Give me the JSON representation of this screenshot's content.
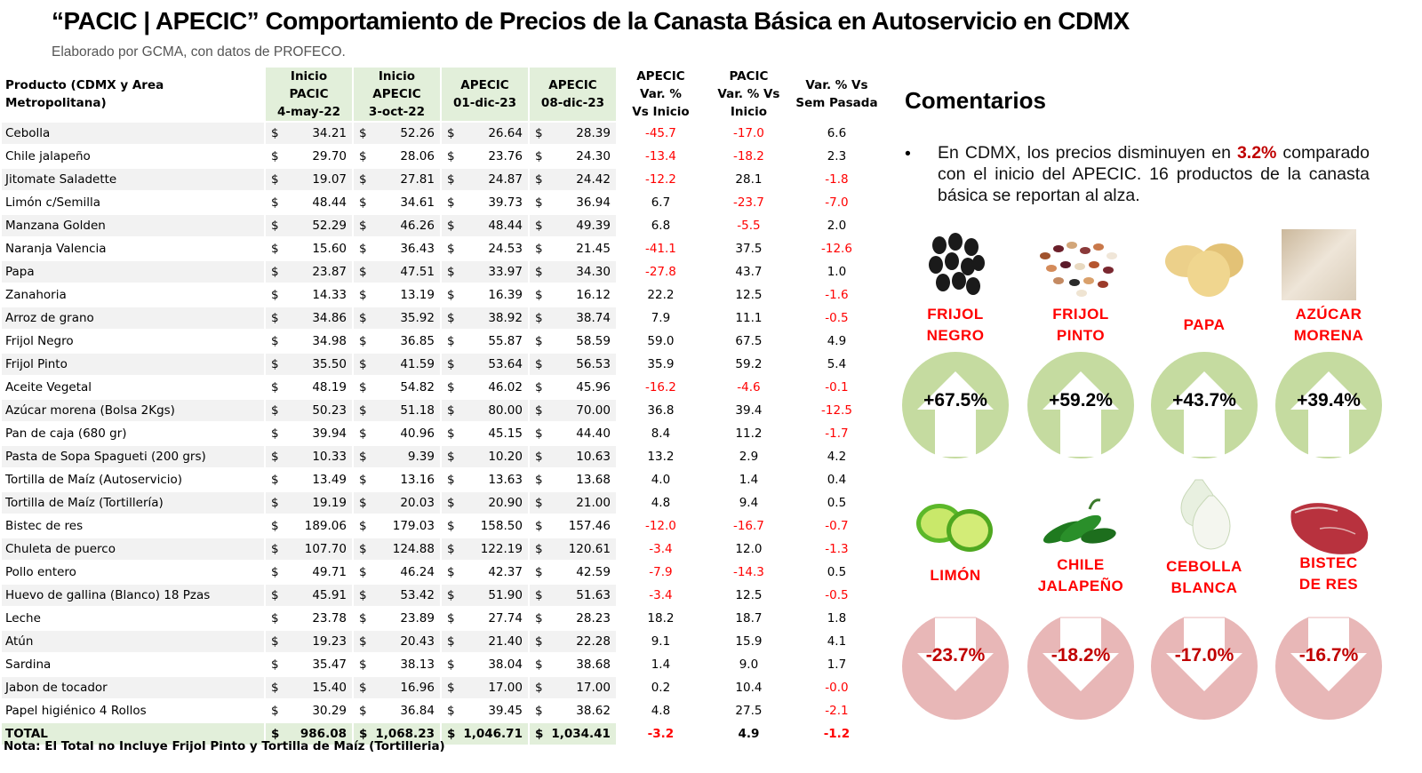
{
  "header": {
    "title": "“PACIC | APECIC” Comportamiento de Precios de la Canasta Básica en Autoservicio en CDMX",
    "subtitle": "Elaborado por GCMA, con datos de PROFECO."
  },
  "table": {
    "columns": {
      "product": "Producto (CDMX y Area Metropolitana)",
      "inicio_pacic": [
        "Inicio",
        "PACIC",
        "4-may-22"
      ],
      "inicio_apecic": [
        "Inicio",
        "APECIC",
        "3-oct-22"
      ],
      "apecic_01dic": [
        "APECIC",
        "01-dic-23"
      ],
      "apecic_08dic": [
        "APECIC",
        "08-dic-23"
      ],
      "apecic_var": [
        "APECIC",
        "Var. %",
        "Vs  Inicio"
      ],
      "pacic_var": [
        "PACIC",
        "Var. % Vs",
        "Inicio"
      ],
      "sem_var": [
        "Var. % Vs",
        "Sem Pasada"
      ]
    },
    "currency": "$",
    "rows": [
      {
        "product": "Cebolla",
        "inicio_pacic": "34.21",
        "inicio_apecic": "52.26",
        "d01": "26.64",
        "d08": "28.39",
        "apecic_var": "-45.7",
        "pacic_var": "-17.0",
        "sem_var": "6.6"
      },
      {
        "product": "Chile jalapeño",
        "inicio_pacic": "29.70",
        "inicio_apecic": "28.06",
        "d01": "23.76",
        "d08": "24.30",
        "apecic_var": "-13.4",
        "pacic_var": "-18.2",
        "sem_var": "2.3"
      },
      {
        "product": "Jitomate Saladette",
        "inicio_pacic": "19.07",
        "inicio_apecic": "27.81",
        "d01": "24.87",
        "d08": "24.42",
        "apecic_var": "-12.2",
        "pacic_var": "28.1",
        "sem_var": "-1.8"
      },
      {
        "product": "Limón c/Semilla",
        "inicio_pacic": "48.44",
        "inicio_apecic": "34.61",
        "d01": "39.73",
        "d08": "36.94",
        "apecic_var": "6.7",
        "pacic_var": "-23.7",
        "sem_var": "-7.0"
      },
      {
        "product": "Manzana Golden",
        "inicio_pacic": "52.29",
        "inicio_apecic": "46.26",
        "d01": "48.44",
        "d08": "49.39",
        "apecic_var": "6.8",
        "pacic_var": "-5.5",
        "sem_var": "2.0"
      },
      {
        "product": "Naranja Valencia",
        "inicio_pacic": "15.60",
        "inicio_apecic": "36.43",
        "d01": "24.53",
        "d08": "21.45",
        "apecic_var": "-41.1",
        "pacic_var": "37.5",
        "sem_var": "-12.6"
      },
      {
        "product": "Papa",
        "inicio_pacic": "23.87",
        "inicio_apecic": "47.51",
        "d01": "33.97",
        "d08": "34.30",
        "apecic_var": "-27.8",
        "pacic_var": "43.7",
        "sem_var": "1.0"
      },
      {
        "product": "Zanahoria",
        "inicio_pacic": "14.33",
        "inicio_apecic": "13.19",
        "d01": "16.39",
        "d08": "16.12",
        "apecic_var": "22.2",
        "pacic_var": "12.5",
        "sem_var": "-1.6"
      },
      {
        "product": "Arroz de grano",
        "inicio_pacic": "34.86",
        "inicio_apecic": "35.92",
        "d01": "38.92",
        "d08": "38.74",
        "apecic_var": "7.9",
        "pacic_var": "11.1",
        "sem_var": "-0.5"
      },
      {
        "product": "Frijol Negro",
        "inicio_pacic": "34.98",
        "inicio_apecic": "36.85",
        "d01": "55.87",
        "d08": "58.59",
        "apecic_var": "59.0",
        "pacic_var": "67.5",
        "sem_var": "4.9"
      },
      {
        "product": "Frijol Pinto",
        "inicio_pacic": "35.50",
        "inicio_apecic": "41.59",
        "d01": "53.64",
        "d08": "56.53",
        "apecic_var": "35.9",
        "pacic_var": "59.2",
        "sem_var": "5.4"
      },
      {
        "product": "Aceite Vegetal",
        "inicio_pacic": "48.19",
        "inicio_apecic": "54.82",
        "d01": "46.02",
        "d08": "45.96",
        "apecic_var": "-16.2",
        "pacic_var": "-4.6",
        "sem_var": "-0.1"
      },
      {
        "product": "Azúcar morena (Bolsa 2Kgs)",
        "inicio_pacic": "50.23",
        "inicio_apecic": "51.18",
        "d01": "80.00",
        "d08": "70.00",
        "apecic_var": "36.8",
        "pacic_var": "39.4",
        "sem_var": "-12.5"
      },
      {
        "product": "Pan de caja (680 gr)",
        "inicio_pacic": "39.94",
        "inicio_apecic": "40.96",
        "d01": "45.15",
        "d08": "44.40",
        "apecic_var": "8.4",
        "pacic_var": "11.2",
        "sem_var": "-1.7"
      },
      {
        "product": "Pasta de Sopa Spagueti (200 grs)",
        "inicio_pacic": "10.33",
        "inicio_apecic": "9.39",
        "d01": "10.20",
        "d08": "10.63",
        "apecic_var": "13.2",
        "pacic_var": "2.9",
        "sem_var": "4.2"
      },
      {
        "product": "Tortilla de Maíz (Autoservicio)",
        "inicio_pacic": "13.49",
        "inicio_apecic": "13.16",
        "d01": "13.63",
        "d08": "13.68",
        "apecic_var": "4.0",
        "pacic_var": "1.4",
        "sem_var": "0.4"
      },
      {
        "product": "Tortilla de Maíz (Tortillería)",
        "inicio_pacic": "19.19",
        "inicio_apecic": "20.03",
        "d01": "20.90",
        "d08": "21.00",
        "apecic_var": "4.8",
        "pacic_var": "9.4",
        "sem_var": "0.5"
      },
      {
        "product": "Bistec de res",
        "inicio_pacic": "189.06",
        "inicio_apecic": "179.03",
        "d01": "158.50",
        "d08": "157.46",
        "apecic_var": "-12.0",
        "pacic_var": "-16.7",
        "sem_var": "-0.7"
      },
      {
        "product": "Chuleta de puerco",
        "inicio_pacic": "107.70",
        "inicio_apecic": "124.88",
        "d01": "122.19",
        "d08": "120.61",
        "apecic_var": "-3.4",
        "pacic_var": "12.0",
        "sem_var": "-1.3"
      },
      {
        "product": "Pollo entero",
        "inicio_pacic": "49.71",
        "inicio_apecic": "46.24",
        "d01": "42.37",
        "d08": "42.59",
        "apecic_var": "-7.9",
        "pacic_var": "-14.3",
        "sem_var": "0.5"
      },
      {
        "product": "Huevo de gallina (Blanco) 18 Pzas",
        "inicio_pacic": "45.91",
        "inicio_apecic": "53.42",
        "d01": "51.90",
        "d08": "51.63",
        "apecic_var": "-3.4",
        "pacic_var": "12.5",
        "sem_var": "-0.5"
      },
      {
        "product": "Leche",
        "inicio_pacic": "23.78",
        "inicio_apecic": "23.89",
        "d01": "27.74",
        "d08": "28.23",
        "apecic_var": "18.2",
        "pacic_var": "18.7",
        "sem_var": "1.8"
      },
      {
        "product": "Atún",
        "inicio_pacic": "19.23",
        "inicio_apecic": "20.43",
        "d01": "21.40",
        "d08": "22.28",
        "apecic_var": "9.1",
        "pacic_var": "15.9",
        "sem_var": "4.1"
      },
      {
        "product": "Sardina",
        "inicio_pacic": "35.47",
        "inicio_apecic": "38.13",
        "d01": "38.04",
        "d08": "38.68",
        "apecic_var": "1.4",
        "pacic_var": "9.0",
        "sem_var": "1.7"
      },
      {
        "product": "Jabon de tocador",
        "inicio_pacic": "15.40",
        "inicio_apecic": "16.96",
        "d01": "17.00",
        "d08": "17.00",
        "apecic_var": "0.2",
        "pacic_var": "10.4",
        "sem_var": "-0.0"
      },
      {
        "product": "Papel higiénico 4 Rollos",
        "inicio_pacic": "30.29",
        "inicio_apecic": "36.84",
        "d01": "39.45",
        "d08": "38.62",
        "apecic_var": "4.8",
        "pacic_var": "27.5",
        "sem_var": "-2.1"
      }
    ],
    "total": {
      "product": "TOTAL",
      "inicio_pacic": "986.08",
      "inicio_apecic": "1,068.23",
      "d01": "1,046.71",
      "d08": "1,034.41",
      "apecic_var": "-3.2",
      "pacic_var": "4.9",
      "sem_var": "-1.2"
    },
    "note": "Nota: El Total no Incluye Frijol Pinto y Tortilla de Maíz (Tortilleria)"
  },
  "comments": {
    "title": "Comentarios",
    "bullet": "•",
    "text_before": "En CDMX, los precios disminuyen en ",
    "highlight": "3.2%",
    "text_after": " comparado con el inicio del APECIC. 16 productos de la canasta básica se reportan al alza."
  },
  "colors": {
    "header_green": "#e2efda",
    "row_gray": "#f2f2f2",
    "negative_red": "#ff0000",
    "up_circle": "#c5dba0",
    "down_circle": "#e8b7b7",
    "down_text": "#c00000"
  },
  "increases": [
    {
      "label": [
        "FRIJOL",
        "NEGRO"
      ],
      "value": "+67.5%",
      "icon": "black-beans-image"
    },
    {
      "label": [
        "FRIJOL",
        "PINTO"
      ],
      "value": "+59.2%",
      "icon": "pinto-beans-image"
    },
    {
      "label": [
        "PAPA"
      ],
      "value": "+43.7%",
      "icon": "potato-image"
    },
    {
      "label": [
        "AZÚCAR",
        "MORENA"
      ],
      "value": "+39.4%",
      "icon": "sugar-image"
    }
  ],
  "decreases": [
    {
      "label": [
        "LIMÓN"
      ],
      "value": "-23.7%",
      "icon": "lime-image"
    },
    {
      "label": [
        "CHILE",
        "JALAPEÑO"
      ],
      "value": "-18.2%",
      "icon": "jalapeno-image"
    },
    {
      "label": [
        "CEBOLLA",
        "BLANCA"
      ],
      "value": "-17.0%",
      "icon": "onion-image"
    },
    {
      "label": [
        "BISTEC",
        "DE RES"
      ],
      "value": "-16.7%",
      "icon": "beef-image"
    }
  ]
}
